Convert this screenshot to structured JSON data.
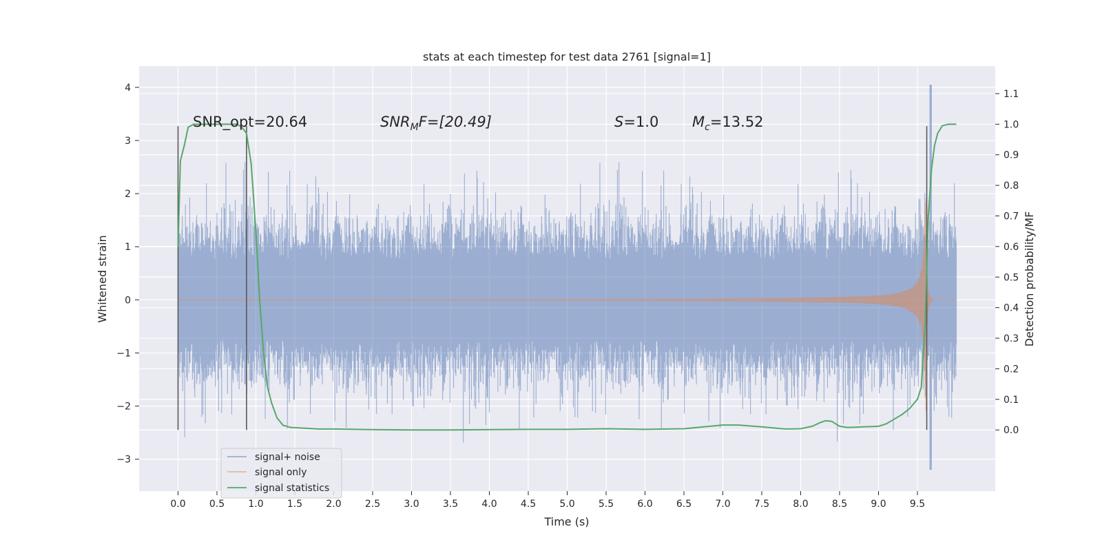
{
  "chart_data": {
    "type": "line",
    "title": "stats at each timestep for test data 2761 [signal=1]",
    "xlabel": "Time (s)",
    "ylabel_left": "Whitened strain",
    "ylabel_right": "Detection probability/MF",
    "xlim": [
      -0.5,
      10.5
    ],
    "ylim_left": [
      -3.6,
      4.4
    ],
    "ylim_right": [
      -0.2,
      1.19
    ],
    "x_ticks": [
      "0.0",
      "0.5",
      "1.0",
      "1.5",
      "2.0",
      "2.5",
      "3.0",
      "3.5",
      "4.0",
      "4.5",
      "5.0",
      "5.5",
      "6.0",
      "6.5",
      "7.0",
      "7.5",
      "8.0",
      "8.5",
      "9.0",
      "9.5"
    ],
    "y_left_ticks": [
      "4",
      "3",
      "2",
      "1",
      "0",
      "−1",
      "−2",
      "−3"
    ],
    "y_right_ticks": [
      "1.1",
      "1.0",
      "0.9",
      "0.8",
      "0.7",
      "0.6",
      "0.5",
      "0.4",
      "0.3",
      "0.2",
      "0.1",
      "0.0"
    ],
    "grid": true,
    "legend_position": "lower-left",
    "colors": {
      "noise": "#4c72b0",
      "signal": "#dd8452",
      "stat": "#55a868",
      "background": "#eaeaf2",
      "vline": "#595959"
    },
    "annotations": {
      "snr_opt": "SNR_opt=20.64",
      "snr_mf_base": "SNR",
      "snr_mf_sub": "M",
      "snr_mf_rest": "F=[20.49]",
      "s_label": "S",
      "s_value": "=1.0",
      "mc_label": "M",
      "mc_sub": "c",
      "mc_value": "=13.52"
    },
    "series": [
      {
        "name": "signal+ noise",
        "axis": "left",
        "description_values": "noise envelope approx ±1 with spikes up to ~2.7; spikes to 4.0 and -3.2 near t=9.6",
        "x_range": [
          0.0,
          10.0
        ]
      },
      {
        "name": "signal only",
        "axis": "left",
        "x_range": [
          0.0,
          10.0
        ],
        "chirp_merger_time": 9.62,
        "peak_amplitude": 2.1
      },
      {
        "name": "signal statistics",
        "axis": "right",
        "x": [
          0.0,
          0.03,
          0.08,
          0.13,
          0.2,
          0.3,
          0.5,
          0.6,
          0.7,
          0.76,
          0.82,
          0.88,
          0.94,
          1.0,
          1.05,
          1.1,
          1.15,
          1.2,
          1.27,
          1.35,
          1.45,
          1.6,
          1.8,
          2.0,
          2.5,
          3.0,
          3.5,
          4.0,
          4.5,
          5.0,
          5.5,
          6.0,
          6.5,
          7.0,
          7.2,
          7.5,
          7.8,
          8.0,
          8.15,
          8.25,
          8.32,
          8.4,
          8.5,
          8.6,
          8.7,
          8.8,
          9.0,
          9.1,
          9.2,
          9.3,
          9.4,
          9.5,
          9.55,
          9.6,
          9.64,
          9.68,
          9.72,
          9.76,
          9.82,
          9.9,
          10.0
        ],
        "values": [
          0.6,
          0.88,
          0.93,
          0.99,
          1.0,
          1.0,
          1.0,
          1.0,
          1.0,
          1.0,
          0.99,
          0.97,
          0.87,
          0.65,
          0.42,
          0.25,
          0.14,
          0.09,
          0.04,
          0.015,
          0.008,
          0.006,
          0.003,
          0.003,
          0.001,
          0.0,
          0.0,
          0.001,
          0.002,
          0.002,
          0.004,
          0.002,
          0.004,
          0.016,
          0.016,
          0.01,
          0.003,
          0.004,
          0.012,
          0.024,
          0.03,
          0.028,
          0.012,
          0.008,
          0.009,
          0.01,
          0.012,
          0.02,
          0.035,
          0.05,
          0.07,
          0.1,
          0.14,
          0.35,
          0.7,
          0.85,
          0.93,
          0.97,
          0.995,
          1.0,
          1.0
        ]
      }
    ],
    "vlines": [
      {
        "x": 0.0,
        "range": [
          -2.45,
          3.27
        ]
      },
      {
        "x": 0.88,
        "range": [
          -2.45,
          3.27
        ]
      },
      {
        "x": 9.62,
        "range": [
          -2.45,
          3.27
        ]
      }
    ],
    "legend": [
      {
        "label": "signal+ noise",
        "color_key": "noise"
      },
      {
        "label": "signal only",
        "color_key": "signal"
      },
      {
        "label": "signal statistics",
        "color_key": "stat"
      }
    ]
  }
}
